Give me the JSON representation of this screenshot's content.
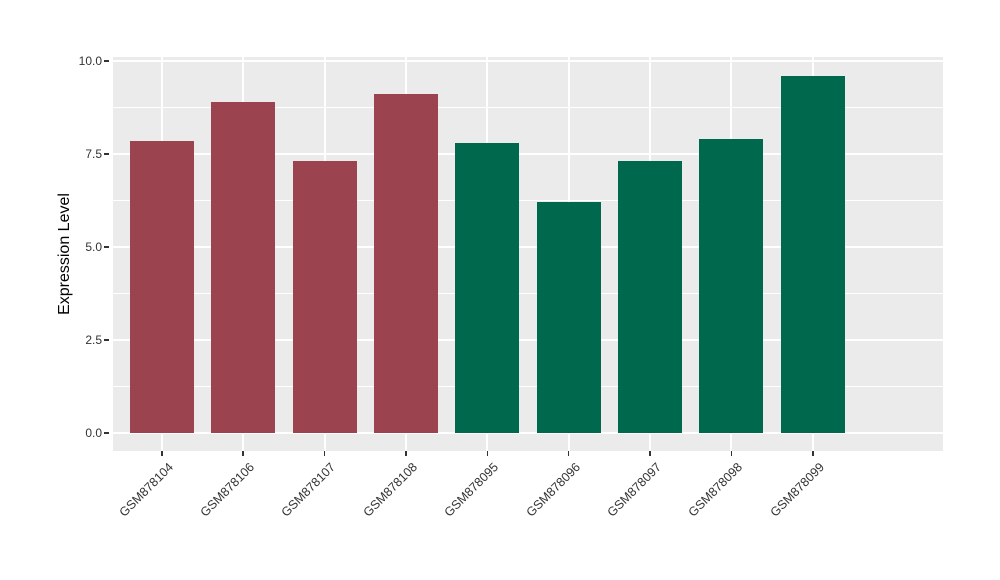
{
  "chart_data": {
    "type": "bar",
    "title": "",
    "ylabel": "Expression Level",
    "xlabel": "",
    "ylim": [
      0,
      10
    ],
    "ytick_labels": [
      "0.0",
      "2.5",
      "5.0",
      "7.5",
      "10.0"
    ],
    "ytick_values": [
      0,
      2.5,
      5,
      7.5,
      10
    ],
    "minor_tick_values": [
      1.25,
      3.75,
      6.25,
      8.75
    ],
    "categories": [
      "GSM878104",
      "GSM878106",
      "GSM878107",
      "GSM878108",
      "GSM878095",
      "GSM878096",
      "GSM878097",
      "GSM878098",
      "GSM878099"
    ],
    "values": [
      7.85,
      8.9,
      7.3,
      9.1,
      7.8,
      6.2,
      7.3,
      7.9,
      9.6
    ],
    "bar_colors": [
      "#9B4450",
      "#9B4450",
      "#9B4450",
      "#9B4450",
      "#00684C",
      "#00684C",
      "#00684C",
      "#00684C",
      "#00684C"
    ],
    "grid": true,
    "legend": false,
    "colors": {
      "panel_background": "#EBEBEB",
      "gridline": "#FFFFFF",
      "tick": "#333333",
      "tick_text": "#333333",
      "axis_title_text": "#000000",
      "group_red": "#9B4450",
      "group_green": "#00684C"
    }
  }
}
